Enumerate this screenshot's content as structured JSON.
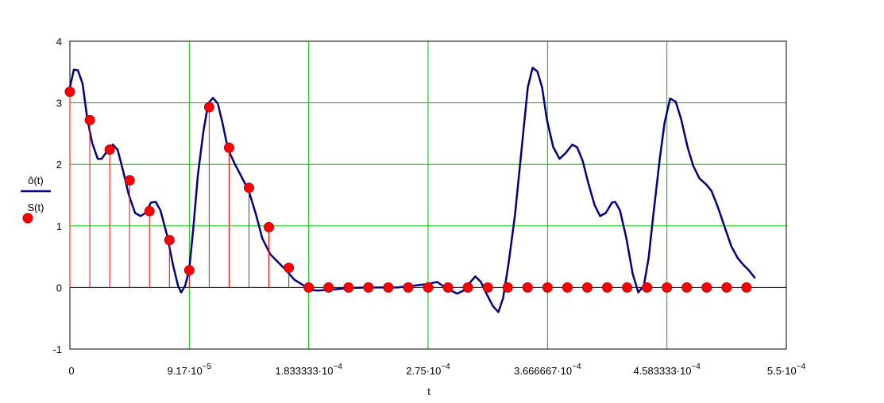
{
  "chart_data": {
    "type": "line-stem",
    "x_label": "t",
    "xlim": [
      0,
      0.00055
    ],
    "ylim": [
      -1,
      4
    ],
    "xticks": [
      0,
      {
        "value": 9.16667e-05,
        "label": "9.17·10",
        "exponent": "−5"
      },
      {
        "value": 0.0001833333,
        "label": "1.833333·10",
        "exponent": "−4"
      },
      {
        "value": 0.000275,
        "label": "2.75·10",
        "exponent": "−4"
      },
      {
        "value": 0.0003666667,
        "label": "3.666667·10",
        "exponent": "−4"
      },
      {
        "value": 0.0004583333,
        "label": "4.583333·10",
        "exponent": "−4"
      },
      {
        "value": 0.00055,
        "label": "5.5·10",
        "exponent": "−4"
      }
    ],
    "yticks": [
      -1,
      0,
      1,
      2,
      3,
      4
    ],
    "grid": true,
    "grid_color": "#00c000",
    "series": [
      {
        "name": "ô(t)",
        "color": "#000080",
        "style": "line",
        "x": [
          0,
          3.05e-06,
          6.1e-06,
          9.76e-06,
          1.343e-05,
          1.709e-05,
          2.136e-05,
          2.441e-05,
          2.868e-05,
          3.296e-05,
          3.662e-05,
          4.089e-05,
          4.516e-05,
          5.004e-05,
          5.432e-05,
          5.798e-05,
          6.225e-05,
          6.591e-05,
          6.957e-05,
          7.446e-05,
          7.934e-05,
          8.3e-05,
          8.544e-05,
          8.849e-05,
          9.155e-05,
          9.46e-05,
          9.826e-05,
          0.00010253,
          0.00010619,
          0.00010985,
          0.00011352,
          0.00011718,
          0.00012145,
          0.00012633,
          0.00013244,
          0.00013732,
          0.00014281,
          0.00014769,
          0.0001538,
          0.0001599,
          0.000166,
          0.0001721,
          0.00017821,
          0.00018431,
          0.00019041,
          0.00020262,
          0.00021483,
          0.00022703,
          0.00023924,
          0.00025144,
          0.00026365,
          0.0002728,
          0.00028196,
          0.00028806,
          0.00029722,
          0.00030332,
          0.00030759,
          0.00031125,
          0.00031553,
          0.0003198,
          0.00032468,
          0.00032895,
          0.00033261,
          0.00033689,
          0.00034177,
          0.00034726,
          0.00035153,
          0.00035519,
          0.00035886,
          0.00036252,
          0.00036618,
          0.00037106,
          0.00037595,
          0.00038083,
          0.00038571,
          0.00038937,
          0.00039364,
          0.00039792,
          0.0004028,
          0.00040707,
          0.00041134,
          0.00041622,
          0.00041866,
          0.00042233,
          0.00042721,
          0.00043209,
          0.00043636,
          0.00044064,
          0.0004443,
          0.00044796,
          0.00045284,
          0.0004565,
          0.00046078,
          0.00046505,
          0.00046932,
          0.0004742,
          0.00047848,
          0.00048336,
          0.00048824,
          0.00049251,
          0.00049739,
          0.00050289,
          0.00050777,
          0.00051265,
          0.00051692,
          0.0005212,
          0.00052608
        ],
        "values": [
          3.25,
          3.54,
          3.53,
          3.31,
          2.73,
          2.35,
          2.09,
          2.09,
          2.22,
          2.32,
          2.24,
          1.89,
          1.51,
          1.21,
          1.16,
          1.21,
          1.38,
          1.39,
          1.25,
          0.86,
          0.35,
          0.03,
          -0.08,
          0.03,
          0.28,
          0.93,
          1.83,
          2.54,
          2.99,
          3.08,
          2.99,
          2.67,
          2.24,
          2.02,
          1.77,
          1.57,
          1.19,
          0.8,
          0.54,
          0.41,
          0.28,
          0.13,
          0.05,
          -0.04,
          -0.05,
          -0.03,
          -0.01,
          0,
          0,
          0,
          0.03,
          0.05,
          0.09,
          0,
          -0.1,
          -0.04,
          0.09,
          0.18,
          0.09,
          -0.1,
          -0.3,
          -0.4,
          -0.17,
          0.41,
          1.19,
          2.35,
          3.25,
          3.57,
          3.51,
          3.25,
          2.73,
          2.28,
          2.09,
          2.19,
          2.32,
          2.28,
          2.06,
          1.7,
          1.34,
          1.16,
          1.21,
          1.38,
          1.39,
          1.25,
          0.8,
          0.22,
          -0.08,
          0.03,
          0.48,
          1.19,
          2.09,
          2.67,
          3.07,
          3.02,
          2.73,
          2.28,
          1.98,
          1.77,
          1.68,
          1.57,
          1.31,
          0.97,
          0.67,
          0.48,
          0.37,
          0.28,
          0.15
        ]
      },
      {
        "name": "S(t)",
        "color": "#ff0000",
        "style": "stem",
        "x": [
          0,
          1.528e-05,
          3.056e-05,
          4.583e-05,
          6.111e-05,
          7.639e-05,
          9.167e-05,
          0.00010694,
          0.00012222,
          0.0001375,
          0.00015278,
          0.00016806,
          0.00018333,
          0.00019861,
          0.00021389,
          0.00022917,
          0.00024444,
          0.00025972,
          0.000275,
          0.00029028,
          0.00030556,
          0.00032083,
          0.00033611,
          0.00035139,
          0.00036667,
          0.00038194,
          0.00039722,
          0.0004125,
          0.00042778,
          0.00044306,
          0.00045833,
          0.00047361,
          0.00048889,
          0.00050417,
          0.00051944
        ],
        "values": [
          3.18,
          2.72,
          2.24,
          1.74,
          1.24,
          0.77,
          0.28,
          2.93,
          2.27,
          1.62,
          0.98,
          0.32,
          0,
          0,
          0,
          0,
          0,
          0,
          0,
          0,
          0,
          0,
          0,
          0,
          0,
          0,
          0,
          0,
          0,
          0,
          0,
          0,
          0,
          0,
          0
        ]
      }
    ]
  }
}
